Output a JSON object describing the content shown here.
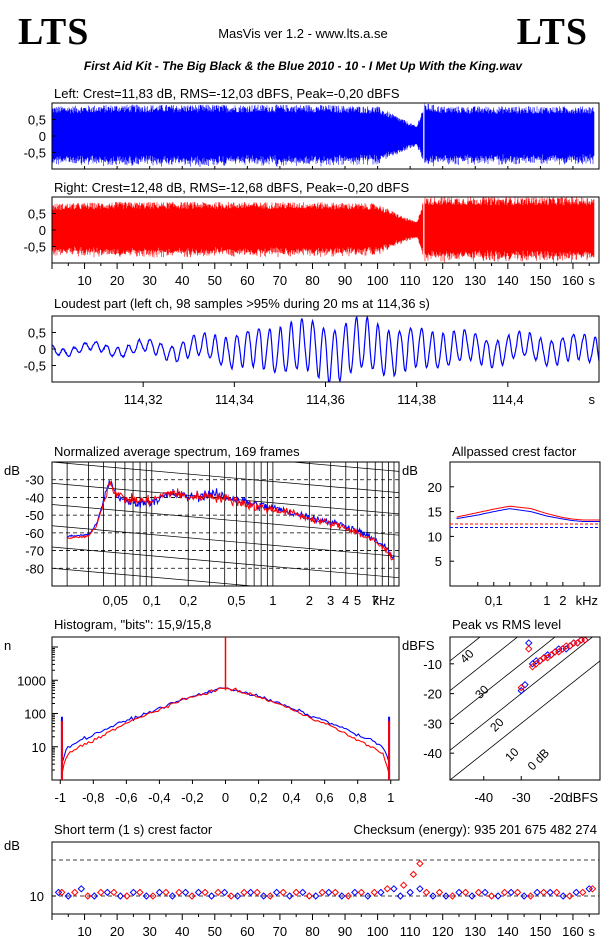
{
  "header": {
    "logo_left": "LTS",
    "logo_right": "LTS",
    "app": "MasVis ver 1.2 - www.lts.a.se",
    "file": "First Aid Kit - The Big Black & the Blue 2010 - 10 - I Met Up With the King.wav"
  },
  "colors": {
    "left": "#0000ff",
    "right": "#ff0000",
    "axis": "#000000"
  },
  "chart_data": [
    {
      "id": "left-waveform",
      "type": "area",
      "title": "Left: Crest=11,83 dB, RMS=-12,03 dBFS, Peak=-0,20 dBFS",
      "yticks": [
        "0.5",
        "0",
        "-0.5"
      ],
      "ylim": [
        -1,
        1
      ],
      "xlim": [
        0,
        168
      ],
      "xlabel": "s",
      "series": [
        {
          "color": "#0000ff",
          "envelope_x": [
            0,
            20,
            40,
            60,
            80,
            100,
            108,
            112,
            114.36,
            120,
            140,
            166
          ],
          "envelope_amp": [
            0.9,
            0.95,
            0.95,
            0.95,
            0.95,
            0.9,
            0.5,
            0.3,
            1.0,
            0.9,
            0.9,
            0.9
          ]
        }
      ]
    },
    {
      "id": "right-waveform",
      "type": "area",
      "title": "Right: Crest=12,48 dB, RMS=-12,68 dBFS, Peak=-0,20 dBFS",
      "yticks": [
        "0.5",
        "0",
        "-0.5"
      ],
      "ylim": [
        -1,
        1
      ],
      "xlim": [
        0,
        168
      ],
      "xticks": [
        "10",
        "20",
        "30",
        "40",
        "50",
        "60",
        "70",
        "80",
        "90",
        "100",
        "110",
        "120",
        "130",
        "140",
        "150",
        "160"
      ],
      "xlabel": "s",
      "series": [
        {
          "color": "#ff0000",
          "envelope_x": [
            0,
            20,
            40,
            60,
            80,
            100,
            108,
            112,
            114.36,
            120,
            140,
            166
          ],
          "envelope_amp": [
            0.8,
            0.85,
            0.85,
            0.85,
            0.85,
            0.8,
            0.4,
            0.25,
            1.0,
            1.0,
            1.0,
            1.0
          ]
        }
      ]
    },
    {
      "id": "loudest-part",
      "type": "line",
      "title": "Loudest part (left  ch, 98 samples >95% during 20 ms at 114,36 s)",
      "yticks": [
        "0.5",
        "0",
        "-0.5"
      ],
      "ylim": [
        -1,
        1
      ],
      "xlim": [
        114.3,
        114.42
      ],
      "xticks": [
        "114,32",
        "114,34",
        "114,36",
        "114,38",
        "114,4"
      ],
      "xlabel": "s",
      "series": [
        {
          "color": "#0000ff"
        }
      ]
    },
    {
      "id": "spectrum",
      "type": "line",
      "title": "Normalized average spectrum, 169 frames",
      "ylabel": "dB",
      "yticks": [
        "-30",
        "-40",
        "-50",
        "-60",
        "-70",
        "-80"
      ],
      "ylim": [
        -90,
        -20
      ],
      "xticks": [
        "0,05",
        "0,1",
        "0,2",
        "0,5",
        "1",
        "2",
        "3",
        "4",
        "5",
        "7"
      ],
      "xlabel": "kHz",
      "x_scale": "log",
      "series": [
        {
          "color": "#0000ff",
          "x": [
            0.02,
            0.03,
            0.035,
            0.04,
            0.045,
            0.05,
            0.06,
            0.08,
            0.1,
            0.12,
            0.15,
            0.2,
            0.3,
            0.5,
            0.7,
            1,
            1.5,
            2,
            3,
            4,
            5,
            7,
            9,
            10
          ],
          "y": [
            -62,
            -61,
            -55,
            -42,
            -30,
            -38,
            -42,
            -43,
            -42,
            -40,
            -38,
            -40,
            -38,
            -41,
            -44,
            -46,
            -49,
            -51,
            -54,
            -56,
            -59,
            -64,
            -70,
            -74
          ]
        },
        {
          "color": "#ff0000",
          "x": [
            0.02,
            0.03,
            0.035,
            0.04,
            0.045,
            0.05,
            0.06,
            0.08,
            0.1,
            0.12,
            0.15,
            0.2,
            0.3,
            0.5,
            0.7,
            1,
            1.5,
            2,
            3,
            4,
            5,
            7,
            9,
            10
          ],
          "y": [
            -63,
            -62,
            -56,
            -43,
            -31,
            -37,
            -41,
            -42,
            -42,
            -39,
            -37,
            -40,
            -39,
            -42,
            -45,
            -47,
            -49,
            -52,
            -55,
            -57,
            -60,
            -65,
            -71,
            -75
          ]
        }
      ]
    },
    {
      "id": "allpassed-crest",
      "type": "line",
      "title": "Allpassed crest factor",
      "ylabel": "dB",
      "yticks": [
        "20",
        "15",
        "10",
        "5"
      ],
      "ylim": [
        0,
        25
      ],
      "xticks": [
        "0,1",
        "1",
        "2"
      ],
      "xlabel": "kHz",
      "x_scale": "log",
      "series": [
        {
          "color": "#0000ff",
          "x": [
            0.02,
            0.05,
            0.1,
            0.2,
            0.5,
            1,
            2,
            3,
            5,
            10
          ],
          "y": [
            13.6,
            14.3,
            15.0,
            15.6,
            15.0,
            14.1,
            13.5,
            13.2,
            13.0,
            13.0
          ]
        },
        {
          "color": "#ff0000",
          "x": [
            0.02,
            0.05,
            0.1,
            0.2,
            0.5,
            1,
            2,
            3,
            5,
            10
          ],
          "y": [
            13.9,
            14.8,
            15.5,
            16.1,
            15.6,
            14.6,
            13.8,
            13.5,
            13.3,
            13.3
          ]
        }
      ],
      "reference_lines": [
        {
          "color": "#0000ff",
          "y": 11.8
        },
        {
          "color": "#ff0000",
          "y": 12.5
        }
      ]
    },
    {
      "id": "histogram",
      "type": "line",
      "title": "Histogram, \"bits\": 15,9/15,8",
      "ylabel": "n",
      "y_scale": "log",
      "yticks": [
        "1000",
        "100",
        "10"
      ],
      "xticks": [
        "-1",
        "-0,8",
        "-0,6",
        "-0,4",
        "-0,2",
        "0",
        "0,2",
        "0,4",
        "0,6",
        "0,8",
        "1"
      ],
      "xlim": [
        -1.05,
        1.05
      ],
      "series": [
        {
          "color": "#0000ff",
          "x": [
            -0.99,
            -0.95,
            -0.9,
            -0.8,
            -0.7,
            -0.6,
            -0.5,
            -0.4,
            -0.3,
            -0.2,
            -0.1,
            -0.05,
            0,
            0.05,
            0.1,
            0.2,
            0.3,
            0.4,
            0.5,
            0.6,
            0.7,
            0.8,
            0.9,
            0.95,
            0.99
          ],
          "y": [
            3,
            10,
            14,
            22,
            38,
            60,
            90,
            140,
            220,
            320,
            450,
            520,
            600,
            520,
            450,
            320,
            220,
            140,
            90,
            60,
            38,
            22,
            14,
            10,
            3
          ]
        },
        {
          "color": "#ff0000",
          "x": [
            -0.99,
            -0.95,
            -0.9,
            -0.8,
            -0.7,
            -0.6,
            -0.5,
            -0.4,
            -0.3,
            -0.2,
            -0.1,
            -0.05,
            0,
            0.05,
            0.1,
            0.2,
            0.3,
            0.4,
            0.5,
            0.6,
            0.7,
            0.8,
            0.9,
            0.95,
            0.99
          ],
          "y": [
            1.5,
            6,
            9,
            15,
            28,
            50,
            80,
            130,
            210,
            310,
            440,
            510,
            590,
            510,
            440,
            310,
            210,
            130,
            80,
            50,
            28,
            15,
            9,
            6,
            1.5
          ]
        }
      ]
    },
    {
      "id": "peak-vs-rms",
      "type": "scatter",
      "title": "Peak vs RMS level",
      "ylabel": "dBFS",
      "xlabel": "dBFS",
      "xticks": [
        "-40",
        "-30",
        "-20"
      ],
      "yticks": [
        "-10",
        "-20",
        "-30",
        "-40"
      ],
      "xlim": [
        -49,
        -9
      ],
      "ylim": [
        -49,
        -1
      ],
      "diagonal_labels": [
        "40",
        "30",
        "20",
        "10",
        "0 dB"
      ],
      "series": [
        {
          "color": "#0000ff",
          "x": [
            -30,
            -29,
            -28,
            -27,
            -26,
            -25,
            -24,
            -23,
            -22,
            -21,
            -20,
            -19,
            -18,
            -17,
            -16,
            -15,
            -14,
            -13
          ],
          "y": [
            -19,
            -17,
            -3,
            -10,
            -9,
            -9,
            -8,
            -7,
            -7,
            -6,
            -5,
            -5,
            -5,
            -4,
            -3,
            -3,
            -2,
            -2
          ]
        },
        {
          "color": "#ff0000",
          "x": [
            -30,
            -28,
            -27,
            -26,
            -25,
            -24,
            -23,
            -22,
            -21,
            -20,
            -19,
            -18,
            -17,
            -16,
            -15,
            -14,
            -13
          ],
          "y": [
            -18,
            -5,
            -11,
            -10,
            -9,
            -8,
            -8,
            -7,
            -6,
            -6,
            -5,
            -4,
            -4,
            -3,
            -3,
            -2,
            -2
          ]
        }
      ]
    },
    {
      "id": "short-term-crest",
      "type": "scatter",
      "title": "Short term (1 s) crest factor",
      "annotation": "Checksum (energy):  935 201 675 482 274",
      "ylabel": "dB",
      "yticks": [
        "10"
      ],
      "ylim": [
        5,
        25
      ],
      "xlim": [
        0,
        168
      ],
      "xticks": [
        "10",
        "20",
        "30",
        "40",
        "50",
        "60",
        "70",
        "80",
        "90",
        "100",
        "110",
        "120",
        "130",
        "140",
        "150",
        "160"
      ],
      "xlabel": "s",
      "reference_lines": [
        {
          "y": 10
        },
        {
          "y": 20
        }
      ],
      "series": [
        {
          "color": "#0000ff",
          "x": [
            2,
            5,
            9,
            13,
            17,
            21,
            25,
            29,
            33,
            37,
            41,
            45,
            49,
            53,
            57,
            61,
            65,
            69,
            73,
            77,
            81,
            85,
            89,
            93,
            97,
            101,
            105,
            107,
            110,
            113,
            117,
            121,
            125,
            129,
            133,
            137,
            141,
            145,
            149,
            153,
            157,
            161,
            165
          ],
          "y": [
            11,
            10,
            12,
            10,
            11,
            10,
            11,
            10,
            11,
            10,
            11,
            11,
            10,
            11,
            10,
            11,
            10,
            11,
            10,
            11,
            10,
            11,
            10,
            11,
            10,
            11,
            12,
            10,
            11,
            12,
            10,
            10,
            11,
            10,
            11,
            10,
            11,
            10,
            11,
            11,
            10,
            11,
            12
          ]
        },
        {
          "color": "#ff0000",
          "x": [
            3,
            7,
            11,
            15,
            19,
            23,
            27,
            31,
            35,
            39,
            43,
            47,
            51,
            55,
            59,
            63,
            67,
            71,
            75,
            79,
            83,
            87,
            91,
            95,
            99,
            103,
            108,
            111,
            113,
            115,
            119,
            123,
            127,
            131,
            135,
            139,
            143,
            147,
            151,
            155,
            159,
            163,
            166
          ],
          "y": [
            11,
            11,
            10,
            11,
            11,
            10,
            11,
            10,
            11,
            11,
            10,
            11,
            11,
            10,
            11,
            11,
            10,
            11,
            11,
            10,
            11,
            11,
            10,
            11,
            11,
            12,
            13,
            16,
            19,
            11,
            11,
            10,
            11,
            11,
            10,
            11,
            11,
            10,
            11,
            11,
            10,
            11,
            12
          ]
        }
      ]
    }
  ]
}
